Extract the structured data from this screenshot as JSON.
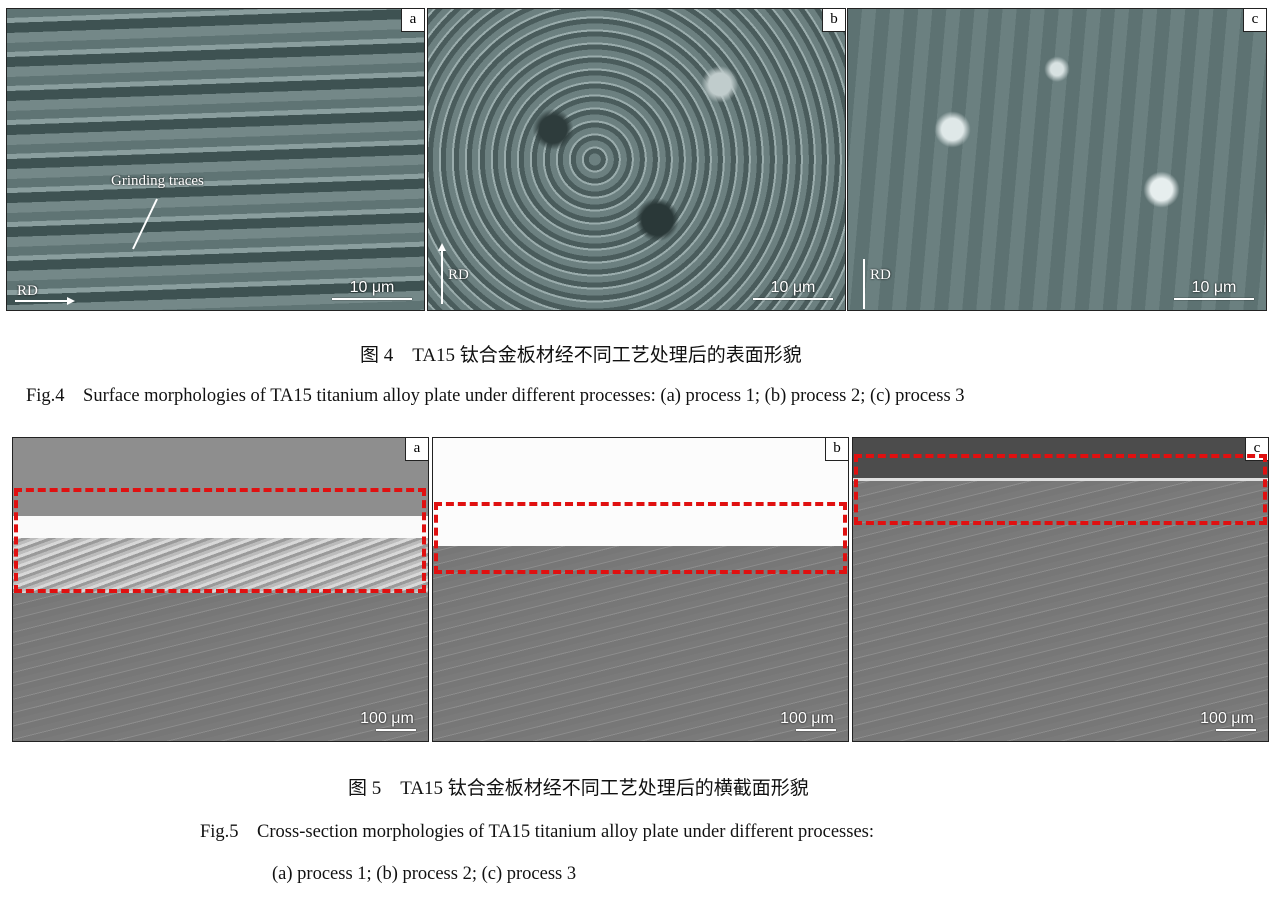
{
  "figure4": {
    "panels": [
      {
        "label": "a",
        "scale_bar": "10 μm",
        "direction": "RD",
        "annotation": "Grinding traces"
      },
      {
        "label": "b",
        "scale_bar": "10 μm",
        "direction": "RD"
      },
      {
        "label": "c",
        "scale_bar": "10 μm",
        "direction": "RD"
      }
    ],
    "caption_cn": "图 4　TA15 钛合金板材经不同工艺处理后的表面形貌",
    "caption_en": "Fig.4　Surface morphologies of TA15 titanium alloy plate under different processes: (a) process 1; (b) process 2; (c) process 3"
  },
  "figure5": {
    "panels": [
      {
        "label": "a",
        "scale_bar": "100 μm"
      },
      {
        "label": "b",
        "scale_bar": "100 μm"
      },
      {
        "label": "c",
        "scale_bar": "100 μm"
      }
    ],
    "highlight_color": "#e01010",
    "caption_cn": "图 5　TA15 钛合金板材经不同工艺处理后的横截面形貌",
    "caption_en_line1": "Fig.5　Cross-section morphologies of TA15 titanium alloy plate under different processes:",
    "caption_en_line2": "(a) process 1; (b) process 2; (c) process 3"
  }
}
